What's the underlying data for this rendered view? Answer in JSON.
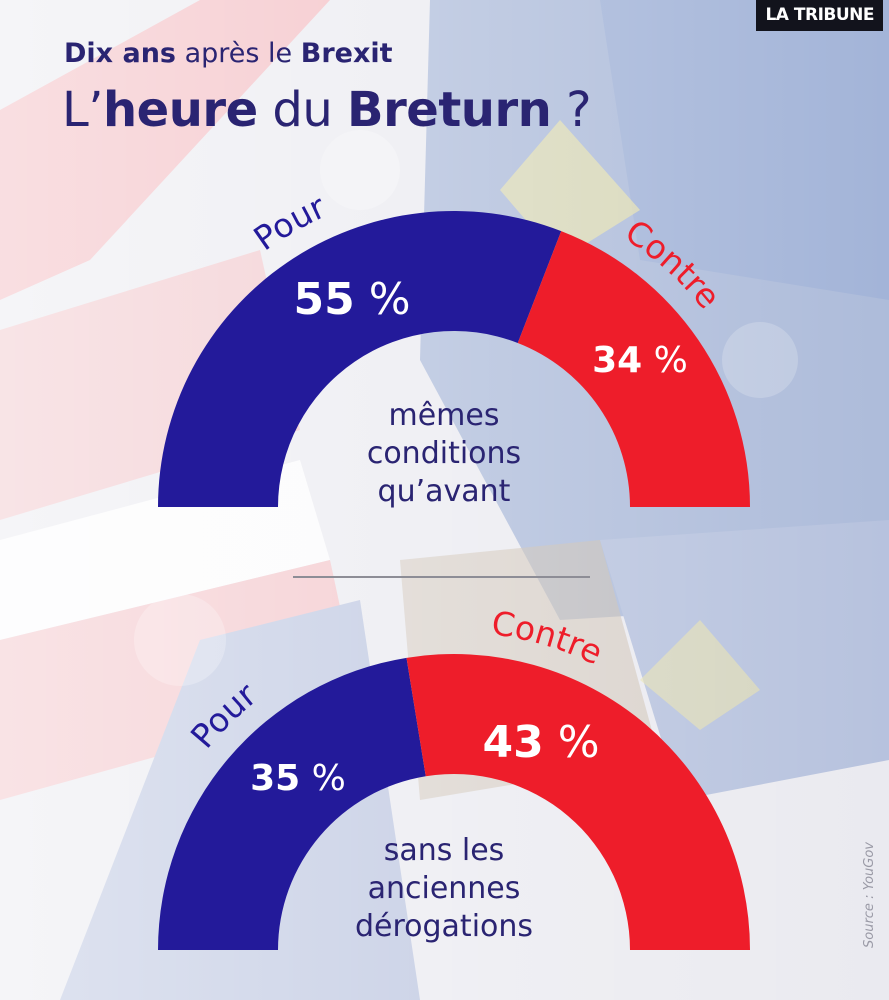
{
  "brand": "LA TRIBUNE",
  "header": {
    "subtitle_part1": "Dix ans",
    "subtitle_part2": " après le ",
    "subtitle_part3": "Brexit",
    "title_part1": "L’",
    "title_part2": "heure",
    "title_part3": " du ",
    "title_part4": "Breturn",
    "title_part5": " ?"
  },
  "colors": {
    "pour": "#231a9a",
    "contre": "#ee1d2a",
    "text_dark": "#2a2472",
    "white": "#ffffff"
  },
  "chart_data": [
    {
      "type": "pie",
      "shape": "half-donut gauge",
      "center_label": [
        "mêmes",
        "conditions",
        "qu’avant"
      ],
      "series": [
        {
          "name": "Pour",
          "value": 55,
          "value_label": "55 %"
        },
        {
          "name": "Contre",
          "value": 34,
          "value_label": "34 %"
        }
      ],
      "unit": "%"
    },
    {
      "type": "pie",
      "shape": "half-donut gauge",
      "center_label": [
        "sans les",
        "anciennes",
        "dérogations"
      ],
      "series": [
        {
          "name": "Pour",
          "value": 35,
          "value_label": "35 %"
        },
        {
          "name": "Contre",
          "value": 43,
          "value_label": "43 %"
        }
      ],
      "unit": "%"
    }
  ],
  "source": "Source : YouGov"
}
